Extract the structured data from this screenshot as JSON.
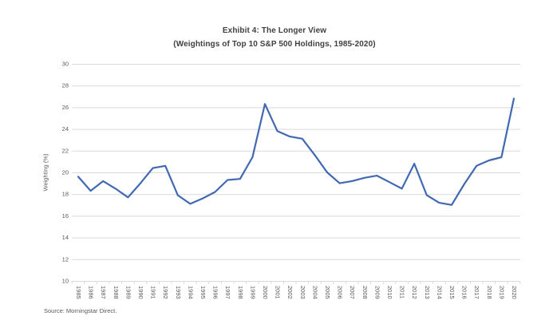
{
  "title": "Exhibit 4: The Longer View",
  "subtitle": "(Weightings of Top 10 S&P 500 Holdings, 1985-2020)",
  "source": "Source: Morningstar Direct.",
  "chart_data": {
    "type": "line",
    "title": "Exhibit 4: The Longer View",
    "subtitle": "(Weightings of Top 10 S&P 500 Holdings, 1985-2020)",
    "xlabel": "",
    "ylabel": "Weighting (%)",
    "ylim": [
      10,
      30
    ],
    "ytick_step": 2,
    "yticks": [
      10,
      12,
      14,
      16,
      18,
      20,
      22,
      24,
      26,
      28,
      30
    ],
    "grid": true,
    "legend": false,
    "x": [
      "1985",
      "1986",
      "1987",
      "1988",
      "1989",
      "1990",
      "1991",
      "1992",
      "1993",
      "1994",
      "1995",
      "1996",
      "1997",
      "1998",
      "1999",
      "2000",
      "2001",
      "2002",
      "2003",
      "2004",
      "2005",
      "2006",
      "2007",
      "2008",
      "2009",
      "2010",
      "2011",
      "2012",
      "2013",
      "2014",
      "2015",
      "2016",
      "2017",
      "2018",
      "2019",
      "2020"
    ],
    "series": [
      {
        "name": "Weightings of Top 10 S&P 500 Holdings",
        "values": [
          19.6,
          18.3,
          19.2,
          18.5,
          17.7,
          19.0,
          20.4,
          20.6,
          17.9,
          17.1,
          17.6,
          18.2,
          19.3,
          19.4,
          21.4,
          26.3,
          23.8,
          23.3,
          23.1,
          21.6,
          20.0,
          19.0,
          19.2,
          19.5,
          19.7,
          19.1,
          18.5,
          20.8,
          17.9,
          17.2,
          17.0,
          18.9,
          20.6,
          21.1,
          21.4,
          26.8
        ]
      }
    ],
    "colors": {
      "line": "#4169b1",
      "gridline": "#d9d9d9",
      "axis_text": "#595959",
      "title_text": "#3f3f3f"
    }
  }
}
